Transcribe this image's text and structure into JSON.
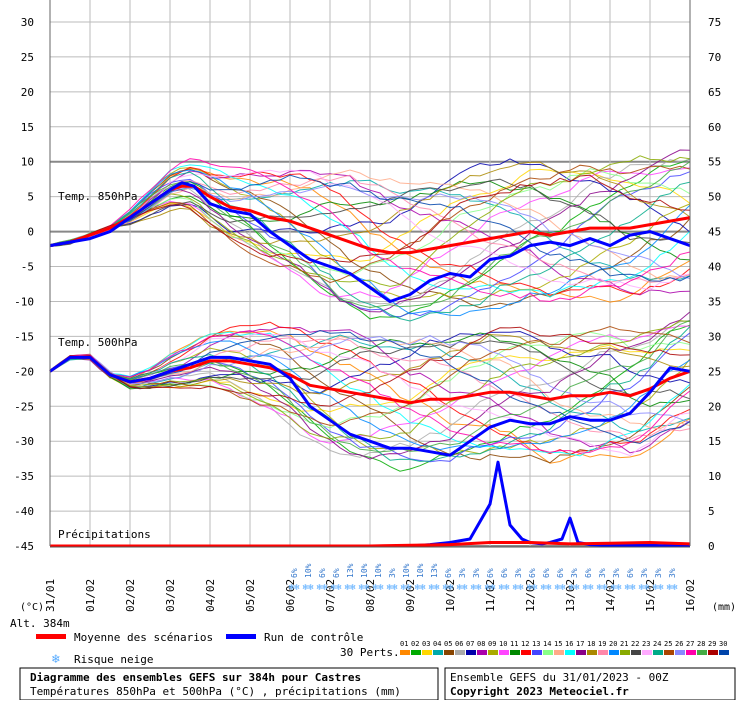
{
  "chart_data": {
    "type": "line",
    "left_axis_ticks": [
      "30",
      "25",
      "20",
      "15",
      "10",
      "5",
      "0",
      "-5",
      "-10",
      "-15",
      "-20",
      "-25",
      "-30",
      "-35",
      "-40",
      "-45"
    ],
    "right_axis_ticks": [
      "75",
      "70",
      "65",
      "60",
      "55",
      "50",
      "45",
      "40",
      "35",
      "30",
      "25",
      "20",
      "15",
      "10",
      "5",
      "0"
    ],
    "left_unit": "(°C)",
    "right_unit": "(mm)",
    "dates": [
      "31/01",
      "01/02",
      "02/02",
      "03/02",
      "04/02",
      "05/02",
      "06/02",
      "07/02",
      "08/02",
      "09/02",
      "10/02",
      "11/02",
      "12/02",
      "13/02",
      "14/02",
      "15/02",
      "16/02"
    ],
    "panel_labels": {
      "t850": "Temp. 850hPa",
      "t500": "Temp. 500hPa",
      "precip": "Précipitations"
    },
    "x_range_days": [
      0,
      16
    ],
    "ylim_left": [
      -45,
      30
    ],
    "ylim_right": [
      0,
      75
    ],
    "series": [
      {
        "name": "Moyenne des scénarios (850hPa)",
        "color": "#ff0000",
        "x": [
          0,
          0.5,
          1,
          1.5,
          2,
          2.5,
          3,
          3.3,
          3.6,
          4,
          4.5,
          5,
          5.5,
          6,
          6.5,
          7,
          7.5,
          8,
          8.5,
          9,
          9.5,
          10,
          10.5,
          11,
          11.5,
          12,
          12.5,
          13,
          13.5,
          14,
          14.5,
          15,
          15.5,
          16
        ],
        "y": [
          -2,
          -1.5,
          -0.5,
          0.5,
          2,
          4,
          6,
          6.5,
          6.5,
          5,
          3.5,
          3,
          2,
          1.5,
          0.5,
          -0.5,
          -1.5,
          -2.5,
          -3,
          -3,
          -2.5,
          -2,
          -1.5,
          -1,
          -0.5,
          0,
          -0.5,
          0,
          0.5,
          0.5,
          0.5,
          1,
          1.5,
          2
        ]
      },
      {
        "name": "Run de contrôle (850hPa)",
        "color": "#0000ff",
        "x": [
          0,
          0.5,
          1,
          1.5,
          2,
          2.5,
          3,
          3.3,
          3.6,
          4,
          4.5,
          5,
          5.5,
          6,
          6.5,
          7,
          7.5,
          8,
          8.5,
          9,
          9.5,
          10,
          10.5,
          11,
          11.5,
          12,
          12.5,
          13,
          13.5,
          14,
          14.5,
          15,
          15.5,
          16
        ],
        "y": [
          -2,
          -1.5,
          -1,
          0,
          2,
          4,
          6,
          7,
          6.5,
          4,
          3,
          2.5,
          0,
          -2,
          -4,
          -5,
          -6,
          -8,
          -10,
          -9,
          -7,
          -6,
          -6.5,
          -4,
          -3.5,
          -2,
          -1.5,
          -2,
          -1,
          -2,
          -0.5,
          0,
          -1,
          -2
        ]
      },
      {
        "name": "Moyenne des scénarios (500hPa)",
        "color": "#ff0000",
        "x": [
          0,
          0.5,
          1,
          1.5,
          2,
          2.5,
          3,
          3.5,
          4,
          4.5,
          5,
          5.5,
          6,
          6.5,
          7,
          7.5,
          8,
          8.5,
          9,
          9.5,
          10,
          10.5,
          11,
          11.5,
          12,
          12.5,
          13,
          13.5,
          14,
          14.5,
          15,
          15.5,
          16
        ],
        "y": [
          -20,
          -18,
          -18,
          -20.5,
          -21.5,
          -21,
          -20,
          -19.5,
          -18.5,
          -18.5,
          -19,
          -19.5,
          -20.5,
          -22,
          -22.5,
          -23,
          -23.5,
          -24,
          -24.5,
          -24,
          -24,
          -23.5,
          -23,
          -23,
          -23.5,
          -24,
          -23.5,
          -23.5,
          -23,
          -23.5,
          -22.5,
          -21,
          -20
        ]
      },
      {
        "name": "Run de contrôle (500hPa)",
        "color": "#0000ff",
        "x": [
          0,
          0.5,
          1,
          1.5,
          2,
          2.5,
          3,
          3.5,
          4,
          4.5,
          5,
          5.5,
          6,
          6.5,
          7,
          7.5,
          8,
          8.5,
          9,
          9.5,
          10,
          10.5,
          11,
          11.5,
          12,
          12.5,
          13,
          13.5,
          14,
          14.5,
          15,
          15.5,
          16
        ],
        "y": [
          -20,
          -18,
          -18,
          -20.5,
          -21.5,
          -21,
          -20,
          -19,
          -18,
          -18,
          -18.5,
          -19,
          -21,
          -25,
          -27,
          -29,
          -30,
          -31,
          -31,
          -31.5,
          -32,
          -30,
          -28,
          -27,
          -27.5,
          -27.5,
          -26.5,
          -27,
          -27,
          -26,
          -23,
          -19.5,
          -20
        ]
      },
      {
        "name": "Run de contrôle (précipitations)",
        "color": "#0000ff",
        "x": [
          0,
          8,
          9,
          9.5,
          10,
          10.5,
          10.8,
          11,
          11.2,
          11.5,
          11.8,
          12,
          12.3,
          12.5,
          12.8,
          13,
          13.2,
          13.5,
          14,
          14.5,
          15,
          15.5,
          16
        ],
        "y": [
          0,
          0,
          0,
          0.2,
          0.5,
          1,
          4,
          6,
          12,
          3,
          1,
          0.5,
          0.3,
          0.5,
          1,
          4,
          0.5,
          0.2,
          0.1,
          0.1,
          0.1,
          0,
          0
        ]
      },
      {
        "name": "Moyenne des scénarios (précipitations)",
        "color": "#ff0000",
        "x": [
          0,
          4,
          8,
          10,
          11,
          12,
          13,
          14,
          15,
          16
        ],
        "y": [
          0,
          0,
          0,
          0.2,
          0.5,
          0.5,
          0.3,
          0.4,
          0.5,
          0.3
        ]
      }
    ],
    "snow_risk": [
      {
        "day": 6.1,
        "labels": [
          "6%"
        ]
      },
      {
        "day": 6.45,
        "labels": [
          "10%"
        ]
      },
      {
        "day": 6.8,
        "labels": [
          "6%"
        ]
      },
      {
        "day": 7.15,
        "labels": [
          "6%"
        ]
      },
      {
        "day": 7.5,
        "labels": [
          "13%"
        ]
      },
      {
        "day": 7.85,
        "labels": [
          "10%"
        ]
      },
      {
        "day": 8.2,
        "labels": [
          "10%"
        ]
      },
      {
        "day": 8.55,
        "labels": [
          "3%"
        ]
      },
      {
        "day": 8.9,
        "labels": [
          "10%"
        ]
      },
      {
        "day": 9.25,
        "labels": [
          "10%"
        ]
      },
      {
        "day": 9.6,
        "labels": [
          "13%"
        ]
      },
      {
        "day": 9.95,
        "labels": [
          "6%"
        ]
      },
      {
        "day": 10.3,
        "labels": [
          "3%"
        ]
      },
      {
        "day": 10.65,
        "labels": [
          "3%"
        ]
      },
      {
        "day": 11.0,
        "labels": [
          "6%"
        ]
      },
      {
        "day": 11.35,
        "labels": [
          "6%"
        ]
      },
      {
        "day": 11.7,
        "labels": [
          "3%"
        ]
      },
      {
        "day": 12.05,
        "labels": [
          "6%"
        ]
      },
      {
        "day": 12.4,
        "labels": [
          "6%"
        ]
      },
      {
        "day": 12.75,
        "labels": [
          "6%"
        ]
      },
      {
        "day": 13.1,
        "labels": [
          "3%"
        ]
      },
      {
        "day": 13.45,
        "labels": [
          "6%"
        ]
      },
      {
        "day": 13.8,
        "labels": [
          "3%"
        ]
      },
      {
        "day": 14.15,
        "labels": [
          "3%"
        ]
      },
      {
        "day": 14.5,
        "labels": [
          "6%"
        ]
      },
      {
        "day": 14.85,
        "labels": [
          "3%"
        ]
      },
      {
        "day": 15.2,
        "labels": [
          "3%"
        ]
      },
      {
        "day": 15.55,
        "labels": [
          "3%"
        ]
      }
    ],
    "perts_colors": [
      "#ff8800",
      "#00aa00",
      "#ffd700",
      "#00aaaa",
      "#884400",
      "#aaaaaa",
      "#0000aa",
      "#aa00aa",
      "#aaaa00",
      "#ff44ff",
      "#008800",
      "#ff0000",
      "#4444ff",
      "#88ff88",
      "#ffaa88",
      "#00ffff",
      "#880088",
      "#aa8800",
      "#ff88aa",
      "#0088ff",
      "#88aa00",
      "#444444",
      "#ffaaff",
      "#00aa88",
      "#aa4400",
      "#8888ff",
      "#ff00aa",
      "#44aa44",
      "#aa0000",
      "#0044aa"
    ]
  },
  "legend": {
    "alt": "Alt. 384m",
    "mean_label": "Moyenne des scénarios",
    "control_label": "Run de contrôle",
    "snow_label": "Risque neige",
    "perts_label": "30 Perts.",
    "perts_numbers": [
      "01",
      "02",
      "03",
      "04",
      "05",
      "06",
      "07",
      "08",
      "09",
      "10",
      "11",
      "12",
      "13",
      "14",
      "15",
      "16",
      "17",
      "18",
      "19",
      "20",
      "21",
      "22",
      "23",
      "24",
      "25",
      "26",
      "27",
      "28",
      "29",
      "30"
    ],
    "mean_color": "#ff0000",
    "control_color": "#0000ff",
    "snow_color": "#55aaff"
  },
  "title_box": {
    "line1": "Diagramme des ensembles GEFS sur 384h pour Castres",
    "line2": "Températures 850hPa et 500hPa (°C) , précipitations (mm)"
  },
  "info_box": {
    "line1": "Ensemble GEFS du 31/01/2023 - 00Z",
    "line2": "Copyright 2023 Meteociel.fr"
  }
}
